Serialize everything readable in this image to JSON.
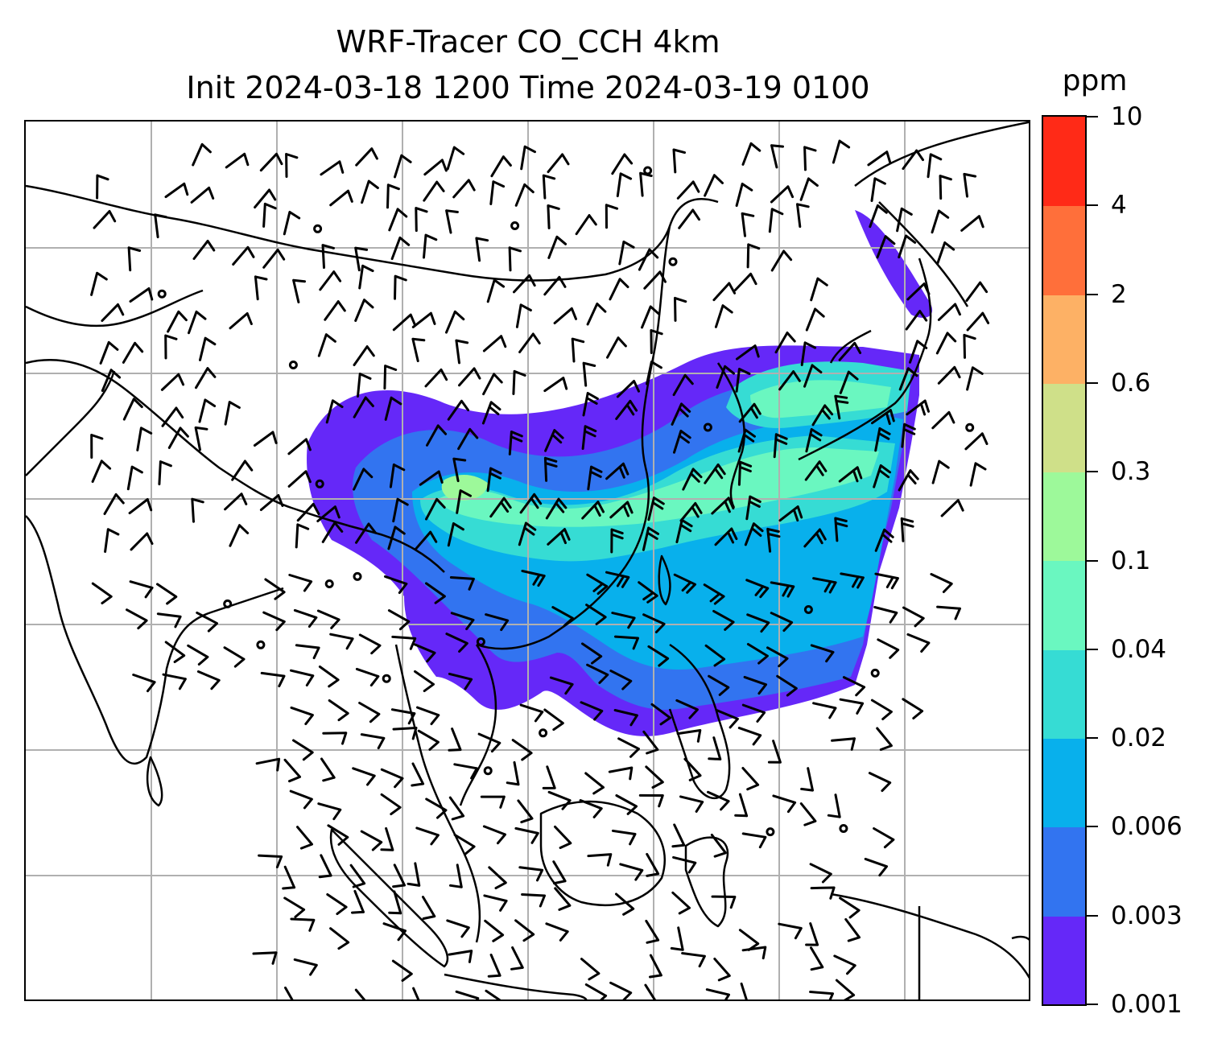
{
  "title": {
    "line1": "WRF-Tracer CO_CCH 4km",
    "line2": "Init 2024-03-18 1200 Time 2024-03-19 0100"
  },
  "colorbar": {
    "unit": "ppm",
    "levels": [
      "0.001",
      "0.003",
      "0.006",
      "0.02",
      "0.04",
      "0.1",
      "0.3",
      "0.6",
      "2",
      "4",
      "10"
    ],
    "colors": [
      "#6528f8",
      "#3274f0",
      "#08b0ec",
      "#36dcd4",
      "#6af7c0",
      "#9df99a",
      "#cfe089",
      "#fdb165",
      "#ff6f3a",
      "#ff2a17"
    ]
  },
  "map": {
    "gridlines": true,
    "wind_barbs": true,
    "coastlines": true,
    "field": "CO_CCH concentration"
  },
  "colors": {
    "coast": "#000000",
    "grid": "#b0b0b0",
    "barb": "#000000"
  }
}
